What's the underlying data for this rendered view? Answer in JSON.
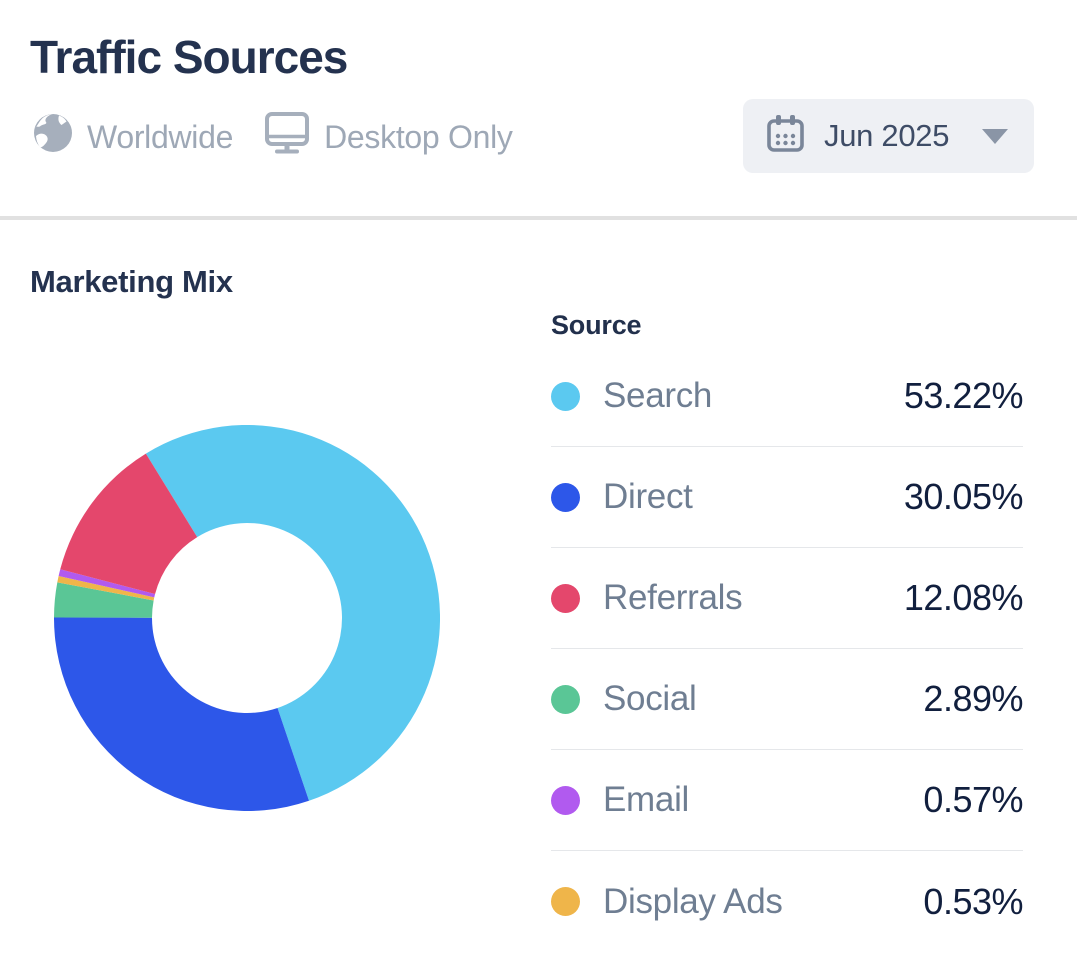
{
  "header": {
    "title": "Traffic Sources",
    "scope": {
      "region": "Worldwide",
      "device": "Desktop Only"
    },
    "date_picker": {
      "value": "Jun 2025"
    }
  },
  "section": {
    "title": "Marketing Mix"
  },
  "legend": {
    "header": "Source",
    "rows": [
      {
        "label": "Search",
        "value": "53.22%",
        "color": "#5BC9F0"
      },
      {
        "label": "Direct",
        "value": "30.05%",
        "color": "#2D57E9"
      },
      {
        "label": "Referrals",
        "value": "12.08%",
        "color": "#E4476C"
      },
      {
        "label": "Social",
        "value": "2.89%",
        "color": "#5AC696"
      },
      {
        "label": "Email",
        "value": "0.57%",
        "color": "#B15AEF"
      },
      {
        "label": "Display Ads",
        "value": "0.53%",
        "color": "#EFB54A"
      }
    ]
  },
  "chart_data": {
    "type": "pie",
    "subtype": "donut",
    "title": "Marketing Mix",
    "legend_header": "Source",
    "categories": [
      "Search",
      "Direct",
      "Referrals",
      "Social",
      "Email",
      "Display Ads"
    ],
    "values": [
      53.22,
      30.05,
      12.08,
      2.89,
      0.57,
      0.53
    ],
    "unit": "%",
    "colors": [
      "#5BC9F0",
      "#2D57E9",
      "#E4476C",
      "#5AC696",
      "#B15AEF",
      "#EFB54A"
    ],
    "legend_position": "right",
    "donut_inner_ratio": 0.49,
    "start_angle_deg": -31.6,
    "direction": "clockwise",
    "clockwise_draw_order": [
      "Search",
      "Direct",
      "Social",
      "Display Ads",
      "Email",
      "Referrals"
    ]
  },
  "theme": {
    "title_color": "#24324F",
    "label_gray": "#6F7E92",
    "value_navy": "#111F3E",
    "subtitle_gray": "#9EA8B6",
    "icon_gray": "#A6AFBC",
    "button_bg": "#EEF0F4",
    "divider": "#E1E1E1"
  }
}
